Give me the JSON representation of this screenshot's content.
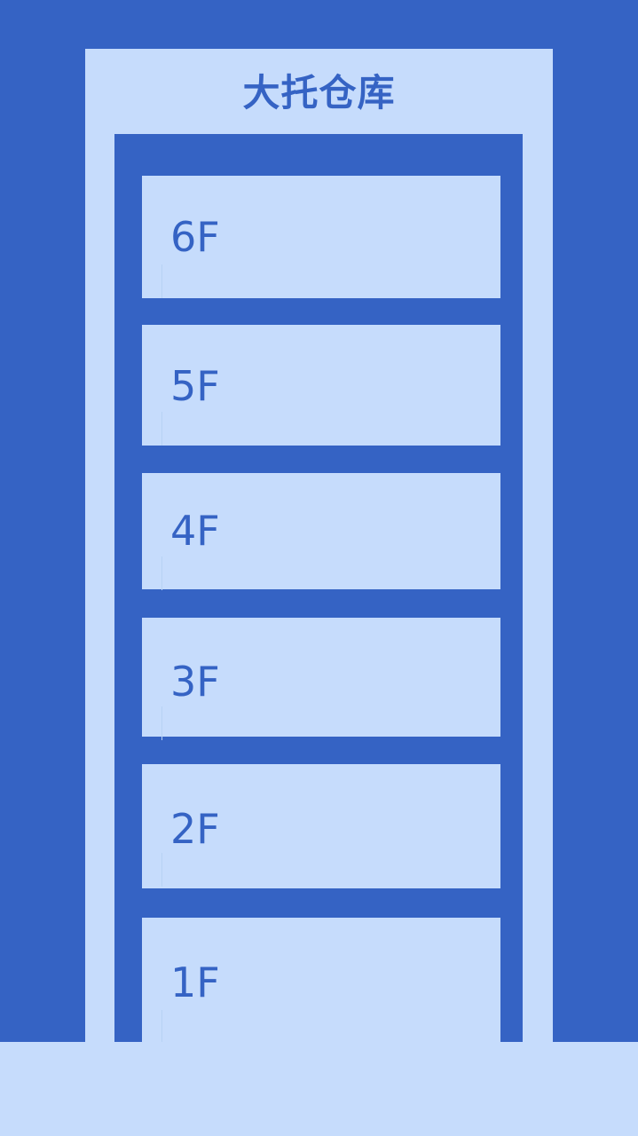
{
  "warehouse": {
    "title": "大托仓库"
  },
  "floors": [
    {
      "label": "6F"
    },
    {
      "label": "5F"
    },
    {
      "label": "4F"
    },
    {
      "label": "3F"
    },
    {
      "label": "2F"
    },
    {
      "label": "1F"
    }
  ],
  "colors": {
    "primary_blue": "#3563c4",
    "light_blue": "#c6dcfc"
  }
}
